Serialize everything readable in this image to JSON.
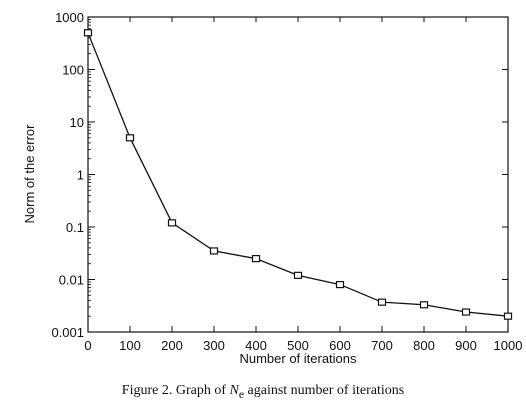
{
  "chart_data": {
    "type": "line",
    "xlabel": "Number of iterations",
    "ylabel": "Norm of the error",
    "xlim": [
      0,
      1000
    ],
    "ylim": [
      0.001,
      1000
    ],
    "yscale": "log",
    "grid": false,
    "x_ticks": [
      "0",
      "100",
      "200",
      "300",
      "400",
      "500",
      "600",
      "700",
      "800",
      "900",
      "1000"
    ],
    "y_ticks": [
      "0.001",
      "0.01",
      "0.1",
      "1",
      "10",
      "100",
      "1000"
    ],
    "series": [
      {
        "marker": "square",
        "x": [
          0,
          100,
          200,
          300,
          400,
          500,
          600,
          700,
          800,
          900,
          1000
        ],
        "y": [
          500,
          5,
          0.12,
          0.035,
          0.025,
          0.012,
          0.008,
          0.0037,
          0.0033,
          0.0024,
          0.002
        ]
      }
    ]
  },
  "caption": {
    "prefix": "Figure 2.  Graph of ",
    "symbol": "N",
    "subscript": "e",
    "suffix": " against number of iterations"
  }
}
